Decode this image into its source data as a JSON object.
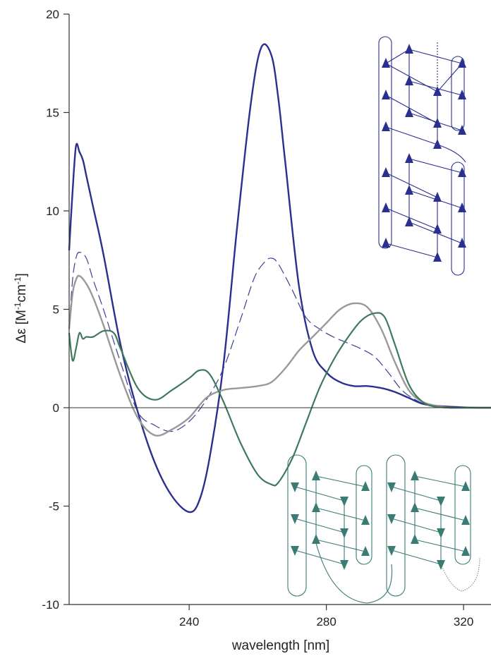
{
  "chart_data": {
    "type": "line",
    "title": "",
    "xlabel": "wavelength [nm]",
    "ylabel_main": "Δε [M",
    "ylabel_sup1": "-1",
    "ylabel_mid": "cm",
    "ylabel_sup2": "-1",
    "ylabel_end": "]",
    "xlim": [
      205,
      328
    ],
    "ylim": [
      -10,
      20
    ],
    "xticks": [
      240,
      280,
      320
    ],
    "xtick_labels": [
      "240",
      "280",
      "320"
    ],
    "yticks": [
      -10,
      -5,
      0,
      5,
      10,
      15,
      20
    ],
    "ytick_labels": [
      "-10",
      "-5",
      "0",
      "5",
      "10",
      "15",
      "20"
    ],
    "grid": false,
    "colors": {
      "blue_solid": "#2b2f8f",
      "blue_dashed": "#3a3f9a",
      "gray": "#999999",
      "green": "#3d7a5c",
      "inset_blue": "#2b2f8f",
      "inset_teal": "#3a7c74"
    },
    "series": [
      {
        "style": "blue-solid",
        "x": [
          205,
          206,
          207,
          208,
          209,
          210,
          212,
          215,
          220,
          225,
          230,
          235,
          240,
          243,
          246,
          250,
          254,
          258,
          261,
          264,
          266,
          268,
          272,
          276,
          280,
          284,
          288,
          292,
          296,
          300,
          304,
          308,
          312,
          316,
          320,
          324,
          328
        ],
        "y": [
          8.0,
          11.0,
          13.3,
          13.0,
          12.6,
          11.8,
          10.2,
          7.8,
          3.2,
          -0.2,
          -2.8,
          -4.5,
          -5.3,
          -4.7,
          -2.5,
          2.2,
          9.2,
          15.5,
          18.3,
          17.9,
          15.7,
          12.5,
          6.2,
          2.9,
          1.8,
          1.3,
          1.1,
          1.1,
          1.0,
          0.8,
          0.5,
          0.2,
          0.1,
          0.05,
          0.02,
          0.0,
          0.0
        ]
      },
      {
        "style": "blue-dashed",
        "x": [
          205,
          206,
          207,
          208,
          210,
          212,
          215,
          220,
          225,
          230,
          235,
          240,
          245,
          250,
          255,
          259,
          262,
          264,
          266,
          270,
          274,
          278,
          282,
          286,
          290,
          294,
          298,
          302,
          306,
          310,
          314,
          318,
          322,
          328
        ],
        "y": [
          4.0,
          6.5,
          7.6,
          7.9,
          7.6,
          6.5,
          5.0,
          2.3,
          -0.2,
          -0.9,
          -1.2,
          -0.7,
          0.4,
          2.0,
          4.5,
          6.6,
          7.4,
          7.6,
          7.3,
          6.0,
          4.6,
          4.0,
          3.6,
          3.3,
          3.0,
          2.6,
          1.8,
          0.9,
          0.4,
          0.1,
          0.0,
          0.0,
          0.0,
          0.0
        ]
      },
      {
        "style": "gray-solid",
        "x": [
          205,
          206,
          207,
          208,
          210,
          212,
          215,
          220,
          225,
          230,
          235,
          240,
          245,
          250,
          255,
          260,
          264,
          268,
          272,
          276,
          280,
          284,
          288,
          292,
          296,
          300,
          304,
          308,
          312,
          316,
          320,
          328
        ],
        "y": [
          4.0,
          5.8,
          6.5,
          6.7,
          6.3,
          5.6,
          4.2,
          1.6,
          -0.5,
          -1.4,
          -1.1,
          -0.5,
          0.5,
          0.9,
          1.0,
          1.1,
          1.3,
          2.0,
          2.9,
          3.6,
          4.3,
          5.0,
          5.3,
          5.1,
          4.0,
          2.3,
          0.9,
          0.3,
          0.1,
          0.0,
          0.0,
          0.0
        ]
      },
      {
        "style": "green-solid",
        "x": [
          205,
          206,
          207,
          208,
          209,
          210,
          212,
          215,
          218,
          220,
          225,
          230,
          235,
          240,
          243,
          246,
          250,
          255,
          260,
          264,
          266,
          270,
          274,
          278,
          282,
          286,
          290,
          294,
          297,
          300,
          304,
          308,
          312,
          316,
          320,
          328
        ],
        "y": [
          3.8,
          2.4,
          3.0,
          3.8,
          3.5,
          3.6,
          3.6,
          3.9,
          3.8,
          3.0,
          1.0,
          0.4,
          0.9,
          1.5,
          1.9,
          1.7,
          0.3,
          -1.8,
          -3.4,
          -3.9,
          -3.8,
          -2.6,
          -0.8,
          1.0,
          2.4,
          3.5,
          4.4,
          4.8,
          4.6,
          3.2,
          1.2,
          0.3,
          0.05,
          0.0,
          0.0,
          0.0
        ]
      }
    ]
  }
}
